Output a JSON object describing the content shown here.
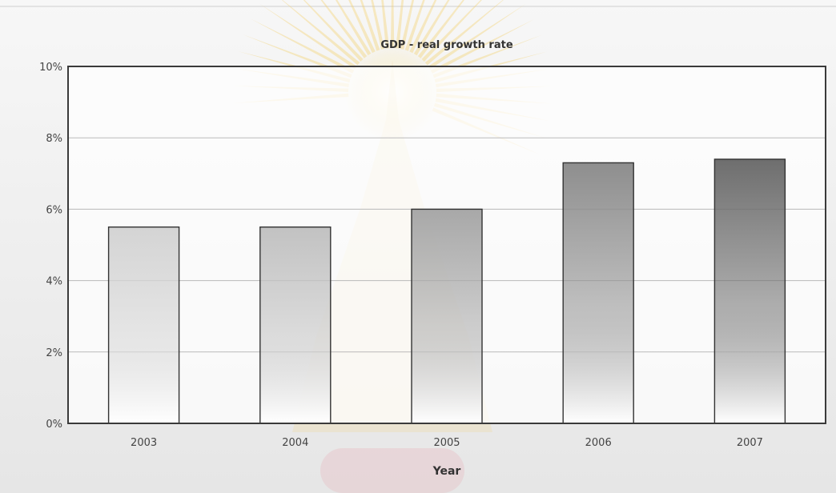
{
  "chart_data": {
    "type": "bar",
    "title": "GDP - real growth rate",
    "xlabel": "Year",
    "ylabel": "",
    "categories": [
      "2003",
      "2004",
      "2005",
      "2006",
      "2007"
    ],
    "values": [
      5.5,
      5.5,
      6.0,
      7.3,
      7.4
    ],
    "ylim": [
      0,
      10
    ],
    "y_ticks": [
      {
        "value": 0,
        "label": "0%"
      },
      {
        "value": 2,
        "label": "2%"
      },
      {
        "value": 4,
        "label": "4%"
      },
      {
        "value": 6,
        "label": "6%"
      },
      {
        "value": 8,
        "label": "8%"
      },
      {
        "value": 10,
        "label": "10%"
      }
    ],
    "grid": true,
    "legend": "none",
    "bar_gradient_tops": [
      "#d4d4d4",
      "#c2c2c2",
      "#a8a8a8",
      "#8e8e8e",
      "#6e6e6e"
    ],
    "bar_gradient_bottom": "#ffffff",
    "bar_stroke": "#333333",
    "watermark": "Chulalongkorn University emblem"
  }
}
